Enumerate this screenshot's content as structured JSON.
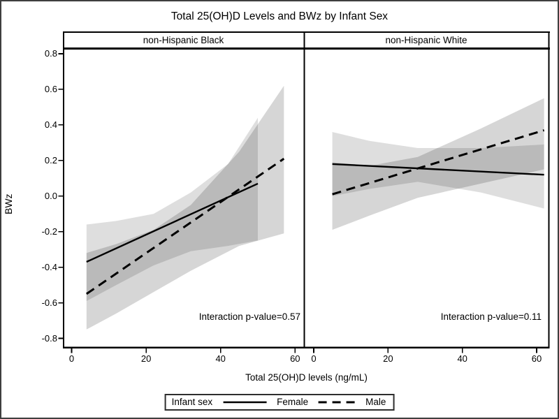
{
  "chart": {
    "title": "Total 25(OH)D Levels and BWz by Infant Sex",
    "xlabel": "Total 25(OH)D levels (ng/mL)",
    "ylabel": "BWz",
    "legend": {
      "title": "Infant sex",
      "items": [
        {
          "label": "Female",
          "line": "solid"
        },
        {
          "label": "Male",
          "line": "dashed"
        }
      ]
    },
    "colors": {
      "line": "#000000",
      "band": "#000000",
      "frame": "#000000",
      "background": "#ffffff"
    }
  },
  "chart_data": [
    {
      "type": "line",
      "panel_label": "non-Hispanic Black",
      "annotation": "Interaction p-value=0.57",
      "xlabel": "Total 25(OH)D levels (ng/mL)",
      "ylabel": "BWz",
      "xticks": [
        0,
        20,
        40,
        60
      ],
      "yticks": [
        0.8,
        0.6,
        0.4,
        0.2,
        0.0,
        -0.2,
        -0.4,
        -0.6,
        -0.8
      ],
      "xlim": [
        -2.4,
        62.5
      ],
      "ylim": [
        -0.86,
        0.83
      ],
      "grid": false,
      "series": [
        {
          "name": "Female",
          "style": "solid",
          "x": [
            4,
            50
          ],
          "y": [
            -0.37,
            0.07
          ],
          "ci": {
            "x": [
              4,
              12,
              22,
              32,
              42,
              50
            ],
            "upper": [
              -0.16,
              -0.14,
              -0.1,
              0.02,
              0.18,
              0.44
            ],
            "lower": [
              -0.59,
              -0.5,
              -0.39,
              -0.31,
              -0.28,
              -0.25
            ]
          }
        },
        {
          "name": "Male",
          "style": "dashed",
          "x": [
            4,
            57
          ],
          "y": [
            -0.55,
            0.21
          ],
          "ci": {
            "x": [
              4,
              12,
              22,
              32,
              45,
              57
            ],
            "upper": [
              -0.32,
              -0.27,
              -0.19,
              -0.05,
              0.25,
              0.62
            ],
            "lower": [
              -0.75,
              -0.66,
              -0.54,
              -0.42,
              -0.28,
              -0.21
            ]
          }
        }
      ]
    },
    {
      "type": "line",
      "panel_label": "non-Hispanic White",
      "annotation": "Interaction p-value=0.11",
      "xlabel": "Total 25(OH)D levels (ng/mL)",
      "ylabel": "BWz",
      "xticks": [
        0,
        20,
        40,
        60
      ],
      "yticks": [
        0.8,
        0.6,
        0.4,
        0.2,
        0.0,
        -0.2,
        -0.4,
        -0.6,
        -0.8
      ],
      "xlim": [
        -2.6,
        63.6
      ],
      "ylim": [
        -0.86,
        0.83
      ],
      "grid": false,
      "series": [
        {
          "name": "Female",
          "style": "solid",
          "x": [
            5,
            62
          ],
          "y": [
            0.18,
            0.12
          ],
          "ci": {
            "x": [
              5,
              15,
              28,
              45,
              62
            ],
            "upper": [
              0.36,
              0.31,
              0.27,
              0.27,
              0.29
            ],
            "lower": [
              0.0,
              0.04,
              0.08,
              0.02,
              -0.07
            ]
          }
        },
        {
          "name": "Male",
          "style": "dashed",
          "x": [
            5,
            62
          ],
          "y": [
            0.01,
            0.37
          ],
          "ci": {
            "x": [
              5,
              15,
              28,
              45,
              62
            ],
            "upper": [
              0.19,
              0.17,
              0.22,
              0.38,
              0.55
            ],
            "lower": [
              -0.19,
              -0.11,
              -0.01,
              0.07,
              0.15
            ]
          }
        }
      ]
    }
  ]
}
